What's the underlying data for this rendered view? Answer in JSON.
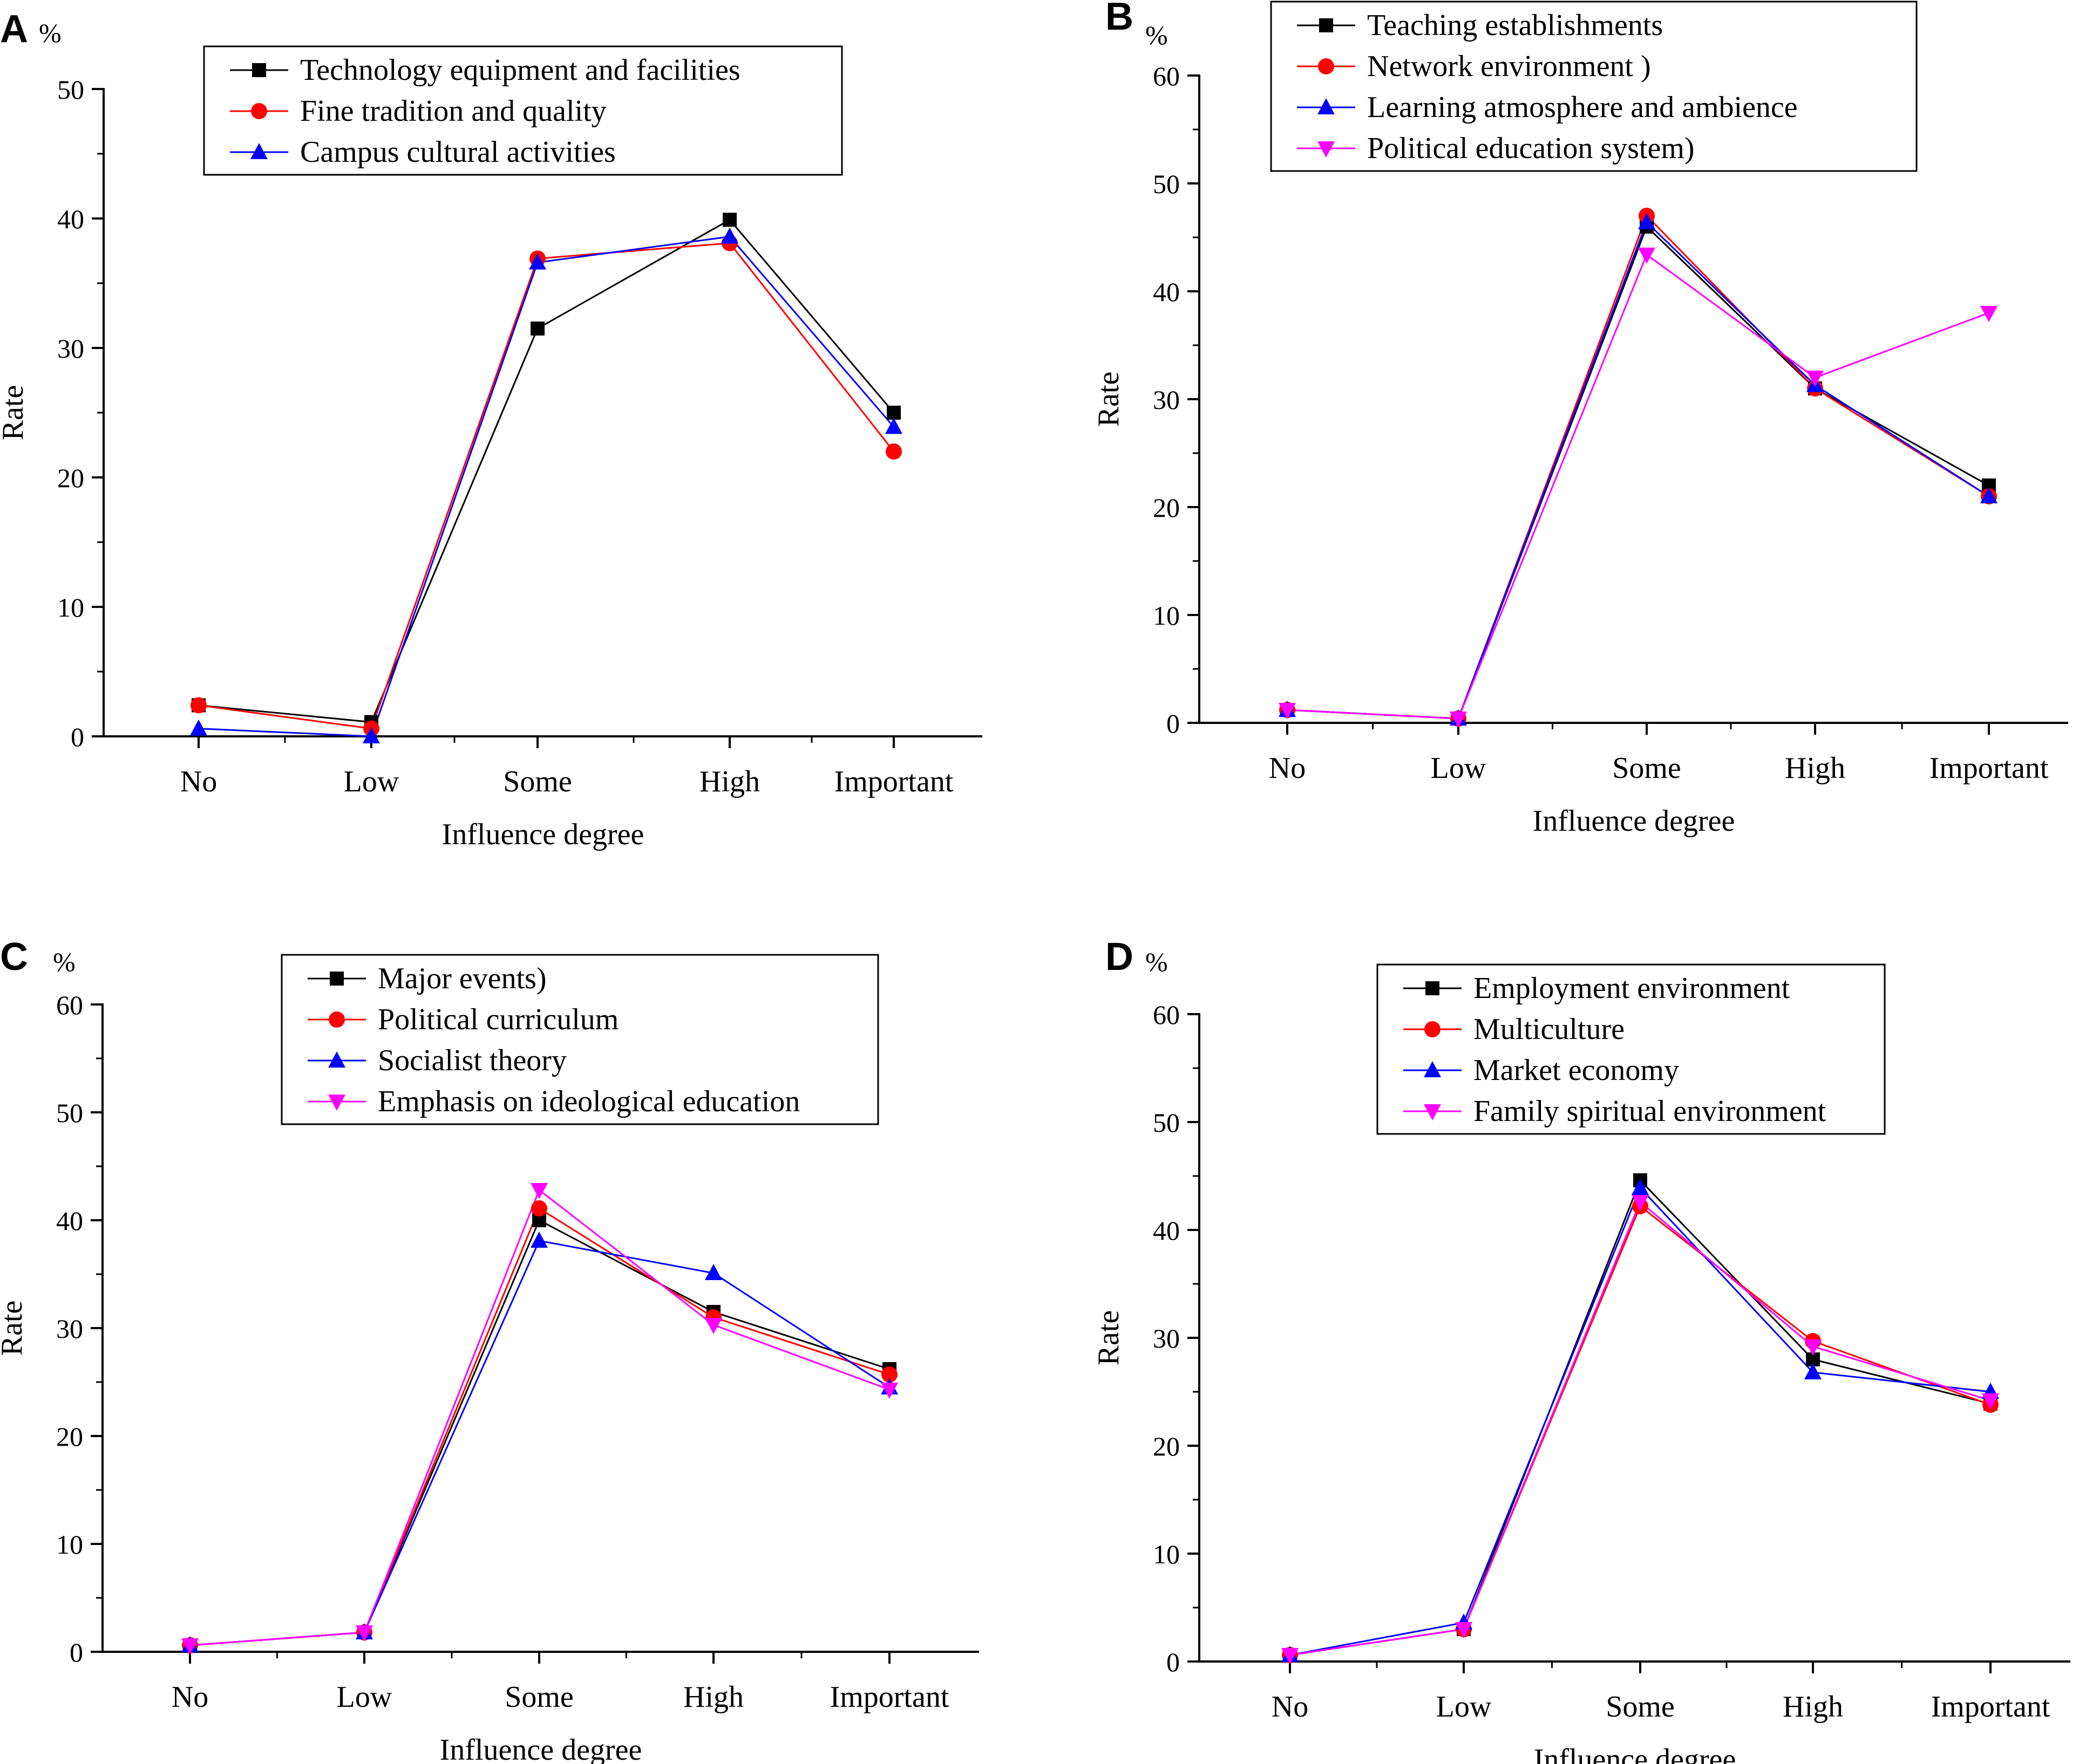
{
  "figure": {
    "colors": {
      "black": "#000000",
      "red": "#ff0000",
      "blue": "#0000ff",
      "magenta": "#ff00ff"
    }
  },
  "chart_data": [
    {
      "panel": "A",
      "type": "line",
      "unit_label": "%",
      "xlabel": "Influence degree",
      "ylabel": "Rate",
      "categories": [
        "No",
        "Low",
        "Some",
        "High",
        "Important"
      ],
      "ylim": [
        0,
        50
      ],
      "yticks": [
        0,
        10,
        20,
        30,
        40,
        50
      ],
      "legend_position": "top-center",
      "series": [
        {
          "name": "Technology equipment and facilities",
          "color": "#000000",
          "marker": "square",
          "values": [
            2.4,
            1.1,
            31.5,
            39.9,
            25.0
          ]
        },
        {
          "name": "Fine tradition and quality",
          "color": "#ff0000",
          "marker": "circle",
          "values": [
            2.4,
            0.6,
            36.9,
            38.1,
            22.0
          ]
        },
        {
          "name": "Campus cultural activities",
          "color": "#0000ff",
          "marker": "triangle-up",
          "values": [
            0.6,
            0.0,
            36.6,
            38.6,
            23.9
          ]
        }
      ]
    },
    {
      "panel": "B",
      "type": "line",
      "unit_label": "%",
      "xlabel": "Influence degree",
      "ylabel": "Rate",
      "categories": [
        "No",
        "Low",
        "Some",
        "High",
        "Important"
      ],
      "ylim": [
        0,
        60
      ],
      "yticks": [
        0,
        10,
        20,
        30,
        40,
        50,
        60
      ],
      "legend_position": "top-center",
      "series": [
        {
          "name": "Teaching establishments",
          "color": "#000000",
          "marker": "square",
          "values": [
            1.2,
            0.4,
            46.0,
            31.0,
            22.0
          ]
        },
        {
          "name": "Network environment )",
          "color": "#ff0000",
          "marker": "circle",
          "values": [
            1.2,
            0.4,
            47.0,
            31.0,
            21.0
          ]
        },
        {
          "name": "Learning atmosphere and ambience",
          "color": "#0000ff",
          "marker": "triangle-up",
          "values": [
            1.2,
            0.4,
            46.4,
            31.3,
            21.0
          ]
        },
        {
          "name": "Political education system)",
          "color": "#ff00ff",
          "marker": "triangle-down",
          "values": [
            1.2,
            0.4,
            43.4,
            32.0,
            38.0
          ]
        }
      ]
    },
    {
      "panel": "C",
      "type": "line",
      "unit_label": "%",
      "xlabel": "Influence degree",
      "ylabel": "Rate",
      "categories": [
        "No",
        "Low",
        "Some",
        "High",
        "Important"
      ],
      "ylim": [
        0,
        60
      ],
      "yticks": [
        0,
        10,
        20,
        30,
        40,
        50,
        60
      ],
      "legend_position": "top-center",
      "series": [
        {
          "name": "Major events)",
          "color": "#000000",
          "marker": "square",
          "values": [
            0.6,
            1.8,
            40.0,
            31.5,
            26.2
          ]
        },
        {
          "name": "Political curriculum",
          "color": "#ff0000",
          "marker": "circle",
          "values": [
            0.6,
            1.8,
            41.1,
            31.0,
            25.7
          ]
        },
        {
          "name": "Socialist theory",
          "color": "#0000ff",
          "marker": "triangle-up",
          "values": [
            0.6,
            1.8,
            38.1,
            35.1,
            24.5
          ]
        },
        {
          "name": "Emphasis on ideological education",
          "color": "#ff00ff",
          "marker": "triangle-down",
          "values": [
            0.6,
            1.8,
            42.8,
            30.3,
            24.3
          ]
        }
      ]
    },
    {
      "panel": "D",
      "type": "line",
      "unit_label": "%",
      "xlabel": "Influence degree",
      "ylabel": "Rate",
      "categories": [
        "No",
        "Low",
        "Some",
        "High",
        "Important"
      ],
      "ylim": [
        0,
        60
      ],
      "yticks": [
        0,
        10,
        20,
        30,
        40,
        50,
        60
      ],
      "legend_position": "top-center",
      "series": [
        {
          "name": "Employment environment",
          "color": "#000000",
          "marker": "square",
          "values": [
            0.6,
            3.0,
            44.6,
            28.0,
            23.9
          ]
        },
        {
          "name": "Multiculture",
          "color": "#ff0000",
          "marker": "circle",
          "values": [
            0.6,
            3.0,
            42.2,
            29.7,
            23.8
          ]
        },
        {
          "name": "Market economy",
          "color": "#0000ff",
          "marker": "triangle-up",
          "values": [
            0.6,
            3.6,
            43.9,
            26.8,
            25.0
          ]
        },
        {
          "name": "Family spiritual environment",
          "color": "#ff00ff",
          "marker": "triangle-down",
          "values": [
            0.6,
            3.0,
            42.6,
            29.2,
            24.2
          ]
        }
      ]
    }
  ]
}
